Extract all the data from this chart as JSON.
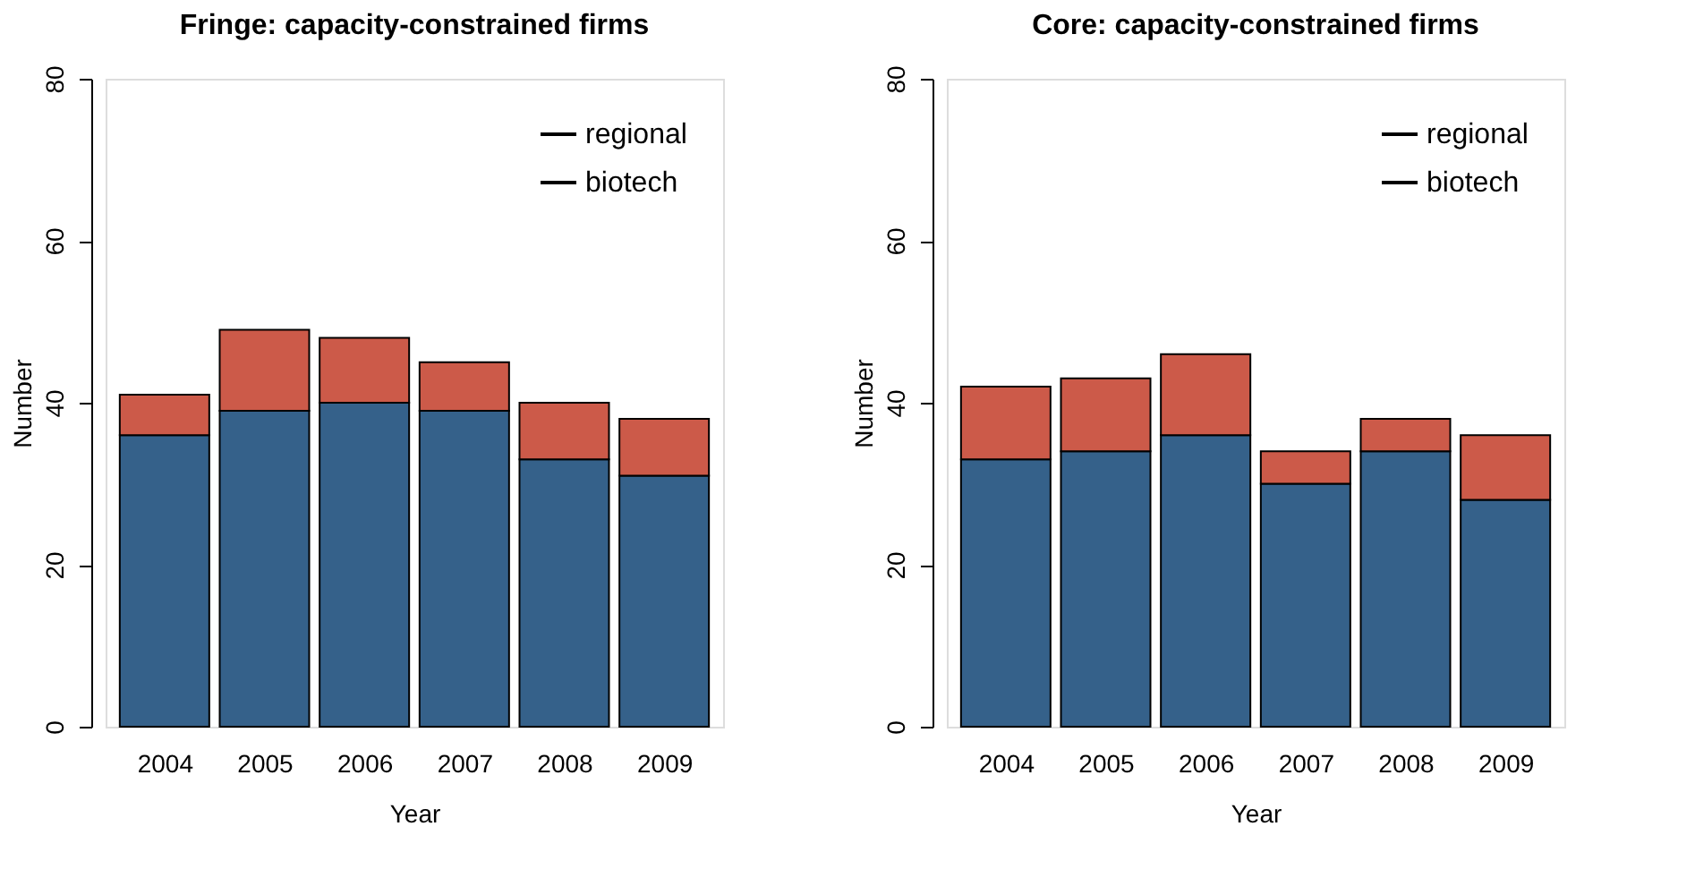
{
  "chart_data": [
    {
      "type": "bar",
      "title": "Fringe: capacity-constrained firms",
      "xlabel": "Year",
      "ylabel": "Number",
      "categories": [
        "2004",
        "2005",
        "2006",
        "2007",
        "2008",
        "2009"
      ],
      "stacked": true,
      "ylim": [
        0,
        80
      ],
      "yticks": [
        0,
        20,
        40,
        60,
        80
      ],
      "grid": false,
      "legend": "top right",
      "series": [
        {
          "name": "regional",
          "color": "#35618a",
          "values": [
            36,
            39,
            40,
            39,
            33,
            31
          ]
        },
        {
          "name": "biotech",
          "color": "#cc5a49",
          "values": [
            5,
            10,
            8,
            6,
            7,
            7
          ]
        }
      ]
    },
    {
      "type": "bar",
      "title": "Core: capacity-constrained firms",
      "xlabel": "Year",
      "ylabel": "Number",
      "categories": [
        "2004",
        "2005",
        "2006",
        "2007",
        "2008",
        "2009"
      ],
      "stacked": true,
      "ylim": [
        0,
        80
      ],
      "yticks": [
        0,
        20,
        40,
        60,
        80
      ],
      "grid": false,
      "legend": "top right",
      "series": [
        {
          "name": "regional",
          "color": "#35618a",
          "values": [
            33,
            34,
            36,
            30,
            34,
            28
          ]
        },
        {
          "name": "biotech",
          "color": "#cc5a49",
          "values": [
            9,
            9,
            10,
            4,
            4,
            8
          ]
        }
      ]
    }
  ]
}
